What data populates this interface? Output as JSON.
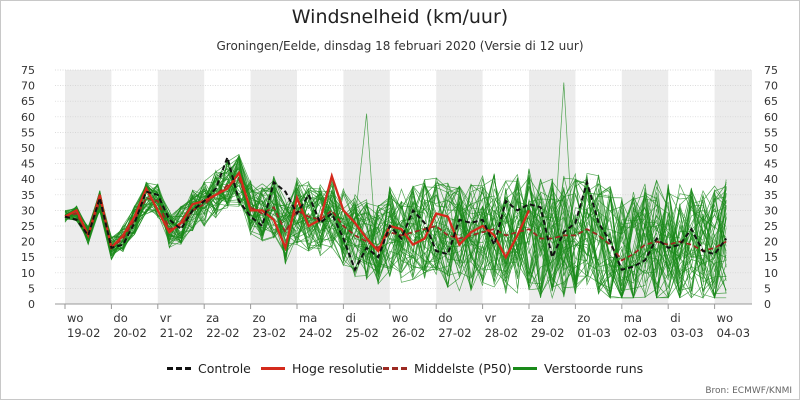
{
  "title": "Windsnelheid (km/uur)",
  "subtitle": "Groningen/Eelde, dinsdag 18 februari 2020 (Versie di 12 uur)",
  "source": "Bron: ECMWF/KNMI",
  "colors": {
    "controle": "#111111",
    "hoge_resolutie": "#d42a1c",
    "middelste": "#9c2a22",
    "verstoorde": "#1a8a1a",
    "shade": "#ececec",
    "grid": "#d0d0d0"
  },
  "chart_data": {
    "type": "line",
    "title": "Windsnelheid (km/uur)",
    "subtitle": "Groningen/Eelde, dinsdag 18 februari 2020 (Versie di 12 uur)",
    "ylim": [
      0,
      75
    ],
    "yticks": [
      0,
      5,
      10,
      15,
      20,
      25,
      30,
      35,
      40,
      45,
      50,
      55,
      60,
      65,
      70,
      75
    ],
    "grid": true,
    "legend_position": "bottom",
    "x_start": "19-02 00:00",
    "x_step_hours": 6,
    "x_labels": [
      {
        "day": "wo",
        "date": "19-02"
      },
      {
        "day": "do",
        "date": "20-02"
      },
      {
        "day": "vr",
        "date": "21-02"
      },
      {
        "day": "za",
        "date": "22-02"
      },
      {
        "day": "zo",
        "date": "23-02"
      },
      {
        "day": "ma",
        "date": "24-02"
      },
      {
        "day": "di",
        "date": "25-02"
      },
      {
        "day": "wo",
        "date": "26-02"
      },
      {
        "day": "do",
        "date": "27-02"
      },
      {
        "day": "vr",
        "date": "28-02"
      },
      {
        "day": "za",
        "date": "29-02"
      },
      {
        "day": "zo",
        "date": "01-03"
      },
      {
        "day": "ma",
        "date": "02-03"
      },
      {
        "day": "di",
        "date": "03-03"
      },
      {
        "day": "wo",
        "date": "04-03"
      }
    ],
    "series": [
      {
        "name": "Controle",
        "style": "dashed",
        "values": [
          28,
          27,
          22,
          34,
          18,
          19,
          26,
          36,
          35,
          27,
          24,
          30,
          33,
          37,
          47,
          33,
          28,
          25,
          39,
          36,
          29,
          35,
          26,
          29,
          21,
          11,
          18,
          15,
          25,
          21,
          30,
          26,
          17,
          16,
          27,
          26,
          27,
          19,
          33,
          30,
          32,
          31,
          15,
          23,
          26,
          39,
          26,
          20,
          11,
          12,
          14,
          21,
          18,
          19,
          24,
          17,
          16,
          21
        ],
        "end_index": 57
      },
      {
        "name": "Hoge resolutie",
        "style": "solid",
        "values": [
          28,
          30,
          22,
          35,
          18,
          22,
          28,
          37,
          30,
          23,
          26,
          32,
          33,
          35,
          37,
          42,
          30,
          30,
          27,
          18,
          34,
          25,
          27,
          41,
          30,
          26,
          21,
          17,
          25,
          24,
          19,
          21,
          29,
          28,
          19,
          23,
          25,
          22,
          15,
          22,
          30
        ],
        "end_index": 40
      },
      {
        "name": "Middelste (P50)",
        "style": "dashed",
        "values": [
          28,
          29,
          22,
          33,
          18,
          21,
          27,
          34,
          33,
          24,
          25,
          30,
          32,
          35,
          38,
          40,
          31,
          29,
          31,
          23,
          30,
          28,
          27,
          30,
          25,
          22,
          20,
          18,
          23,
          22,
          23,
          24,
          25,
          22,
          21,
          22,
          23,
          24,
          22,
          23,
          24,
          21,
          21,
          22,
          22,
          24,
          22,
          19,
          14,
          16,
          19,
          20,
          19,
          20,
          19,
          17,
          18,
          20
        ],
        "end_index": 57
      },
      {
        "name": "Verstoorde runs",
        "style": "thin",
        "ensemble_members": 50
      }
    ]
  },
  "legend": [
    {
      "label": "Controle",
      "key": "controle"
    },
    {
      "label": "Hoge resolutie",
      "key": "hoge_resolutie"
    },
    {
      "label": "Middelste (P50)",
      "key": "middelste"
    },
    {
      "label": "Verstoorde runs",
      "key": "verstoorde"
    }
  ]
}
